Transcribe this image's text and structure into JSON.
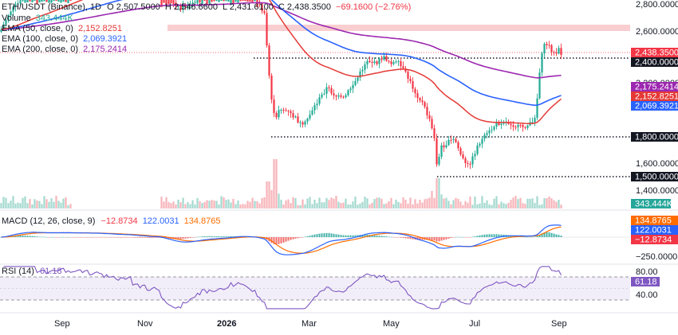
{
  "legend": {
    "symbol_line": {
      "pair": "ETH/USDT (Binance), 1D",
      "o": "O 2,507.5000",
      "h": "H 2,546.6600",
      "l": "L 2,431.6100",
      "c": "C 2,438.3500",
      "chg": "−69.1600 (−2.76%)"
    },
    "volume": {
      "name": "Volume",
      "value": "343.444K"
    },
    "ema50": {
      "name": "EMA (50, close, 0)",
      "value": "2,152.8251"
    },
    "ema100": {
      "name": "EMA (100, close, 0)",
      "value": "2,069.3921"
    },
    "ema200": {
      "name": "EMA (200, close, 0)",
      "value": "2,175.2414"
    }
  },
  "price_axis": {
    "ticks": [
      "2,800.0000",
      "2,600.0000",
      "1,600.0000",
      "1,400.0000"
    ]
  },
  "price_tags": {
    "last": "2,438.3500",
    "lvl2400": "2,400.0000",
    "ema200": "2,175.2414",
    "ema50": "2,152.8251",
    "ema100": "2,069.3921",
    "lvl1800": "1,800.0000",
    "lvl1500": "1,500.0000",
    "volume": "343.444K",
    "partial": "2,200.0000"
  },
  "macd": {
    "label": "MACD (12, 26, close, 9)",
    "v1": "−12.8734",
    "v2": "122.0031",
    "v3": "134.8765",
    "tags": {
      "signal": "134.8765",
      "macd": "122.0031",
      "hist": "−12.8734"
    },
    "axis_tick": "−250.0000"
  },
  "rsi": {
    "label": "RSI (14)",
    "value": "61.18",
    "tag": "61.18",
    "ticks": [
      "80.00",
      "40.00"
    ]
  },
  "time_axis": [
    "Sep",
    "Nov",
    "2026",
    "Mar",
    "May",
    "Jul",
    "Sep"
  ],
  "colors": {
    "up": "#22ab94",
    "down": "#f23645",
    "ema50": "#e53935",
    "ema100": "#2962ff",
    "ema200": "#9c27b0",
    "macd": "#2962ff",
    "signal": "#ff6d00",
    "rsi": "#7e57c2"
  },
  "chart_data": {
    "type": "candlestick",
    "symbol": "ETH/USDT",
    "interval": "1D",
    "price_axis_range": [
      1300,
      2900
    ],
    "horizontal_levels": [
      2400,
      1800,
      1500
    ],
    "resistance_zone": [
      2600,
      2640
    ],
    "close_series_points": [
      {
        "x": "Nov",
        "y": 2900
      },
      {
        "x": "Dec",
        "y": 2850
      },
      {
        "x": "Jan",
        "y": 2950
      },
      {
        "x": "Feb (early)",
        "y": 2100
      },
      {
        "x": "Feb (mid)",
        "y": 1780
      },
      {
        "x": "Mar",
        "y": 1950
      },
      {
        "x": "Apr",
        "y": 2220
      },
      {
        "x": "Apr (late)",
        "y": 2400
      },
      {
        "x": "May",
        "y": 2250
      },
      {
        "x": "May (late)",
        "y": 1550
      },
      {
        "x": "Jun",
        "y": 1700
      },
      {
        "x": "Jul",
        "y": 1800
      },
      {
        "x": "Aug",
        "y": 1900
      },
      {
        "x": "Aug (late)",
        "y": 2550
      },
      {
        "x": "Sep",
        "y": 2438
      }
    ],
    "ema_50_last": 2152.8251,
    "ema_100_last": 2069.3921,
    "ema_200_last": 2175.2414,
    "volume_last": "343.444K",
    "macd_last": {
      "macd": 122.0031,
      "signal": 134.8765,
      "histogram": -12.8734
    },
    "rsi_last": 61.18,
    "rsi_levels": [
      70,
      30
    ]
  }
}
